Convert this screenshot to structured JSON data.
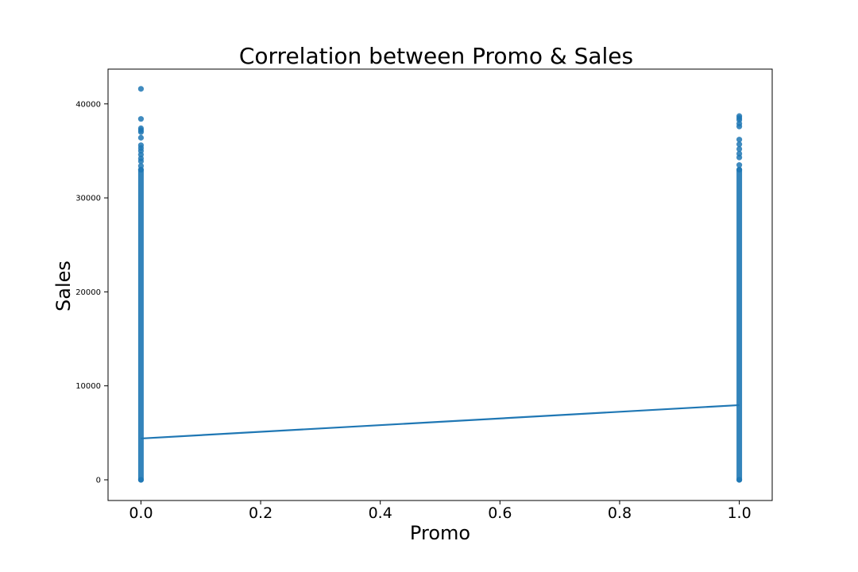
{
  "chart_data": {
    "type": "scatter",
    "title": "Correlation between Promo & Sales",
    "xlabel": "Promo",
    "ylabel": "Sales",
    "xlim": [
      -0.055,
      1.055
    ],
    "ylim": [
      -2200,
      43700
    ],
    "x_ticks": [
      0.0,
      0.2,
      0.4,
      0.6,
      0.8,
      1.0
    ],
    "x_tick_labels": [
      "0.0",
      "0.2",
      "0.4",
      "0.6",
      "0.8",
      "1.0"
    ],
    "y_ticks": [
      0,
      10000,
      20000,
      30000,
      40000
    ],
    "y_tick_labels": [
      "0",
      "10000",
      "20000",
      "30000",
      "40000"
    ],
    "grid": false,
    "colors": {
      "points": "#1f77b4",
      "line": "#1f77b4"
    },
    "series": [
      {
        "x": [
          0,
          0,
          0,
          0,
          0,
          0,
          0,
          0,
          0,
          0,
          0,
          0,
          0,
          0,
          0
        ],
        "y": [
          0,
          33000,
          33400,
          33900,
          34200,
          34600,
          35000,
          35300,
          35600,
          36400,
          37000,
          37200,
          37400,
          38400,
          41600
        ],
        "range_min": 0,
        "range_max": 33000
      },
      {
        "x": [
          1,
          1,
          1,
          1,
          1,
          1,
          1,
          1,
          1,
          1,
          1,
          1,
          1
        ],
        "y": [
          0,
          33000,
          33500,
          34300,
          34700,
          35200,
          35700,
          36200,
          37600,
          37900,
          38300,
          38500,
          38700
        ],
        "range_min": 0,
        "range_max": 33000
      }
    ],
    "regression_line": {
      "x": [
        0,
        1
      ],
      "y": [
        4400,
        7950
      ]
    }
  }
}
